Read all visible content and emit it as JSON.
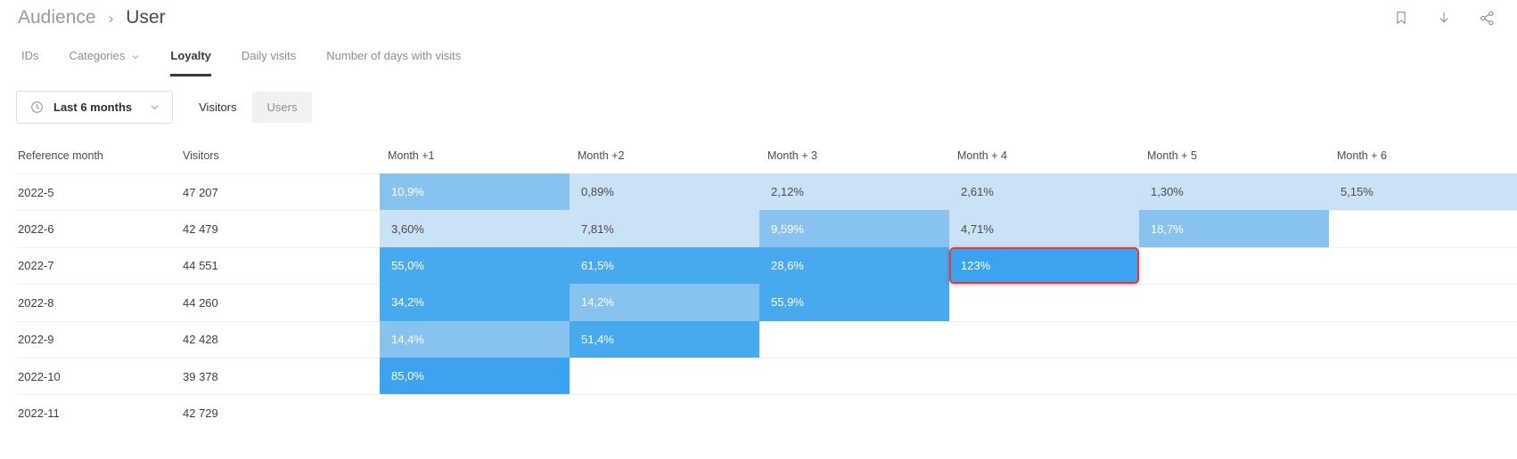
{
  "breadcrumb": {
    "section": "Audience",
    "separator": "›",
    "page": "User"
  },
  "header_icons": [
    {
      "name": "bookmark-icon"
    },
    {
      "name": "download-icon"
    },
    {
      "name": "share-icon"
    }
  ],
  "tabs": [
    {
      "label": "IDs",
      "active": false,
      "has_dropdown": false
    },
    {
      "label": "Categories",
      "active": false,
      "has_dropdown": true
    },
    {
      "label": "Loyalty",
      "active": true,
      "has_dropdown": false
    },
    {
      "label": "Daily visits",
      "active": false,
      "has_dropdown": false
    },
    {
      "label": "Number of days with visits",
      "active": false,
      "has_dropdown": false
    }
  ],
  "filters": {
    "period": {
      "label": "Last 6 months",
      "icon": "clock-icon"
    },
    "segments": [
      {
        "label": "Visitors",
        "active": true
      },
      {
        "label": "Users",
        "active": false
      }
    ]
  },
  "table": {
    "columns": [
      "Reference month",
      "Visitors",
      "Month +1",
      "Month +2",
      "Month + 3",
      "Month + 4",
      "Month + 5",
      "Month + 6"
    ],
    "rows": [
      {
        "month": "2022-5",
        "visitors": "47 207",
        "cells": [
          {
            "value": "10,9%",
            "shade": "medium"
          },
          {
            "value": "0,89%",
            "shade": "light"
          },
          {
            "value": "2,12%",
            "shade": "light"
          },
          {
            "value": "2,61%",
            "shade": "light"
          },
          {
            "value": "1,30%",
            "shade": "light"
          },
          {
            "value": "5,15%",
            "shade": "light"
          }
        ]
      },
      {
        "month": "2022-6",
        "visitors": "42 479",
        "cells": [
          {
            "value": "3,60%",
            "shade": "light"
          },
          {
            "value": "7,81%",
            "shade": "light"
          },
          {
            "value": "9,59%",
            "shade": "medium"
          },
          {
            "value": "4,71%",
            "shade": "light"
          },
          {
            "value": "18,7%",
            "shade": "medium"
          },
          null
        ]
      },
      {
        "month": "2022-7",
        "visitors": "44 551",
        "cells": [
          {
            "value": "55,0%",
            "shade": "dark"
          },
          {
            "value": "61,5%",
            "shade": "dark"
          },
          {
            "value": "28,6%",
            "shade": "dark"
          },
          {
            "value": "123%",
            "shade": "darkest",
            "highlighted": true
          },
          null,
          null
        ]
      },
      {
        "month": "2022-8",
        "visitors": "44 260",
        "cells": [
          {
            "value": "34,2%",
            "shade": "dark"
          },
          {
            "value": "14,2%",
            "shade": "medium"
          },
          {
            "value": "55,9%",
            "shade": "dark"
          },
          null,
          null,
          null
        ]
      },
      {
        "month": "2022-9",
        "visitors": "42 428",
        "cells": [
          {
            "value": "14,4%",
            "shade": "medium"
          },
          {
            "value": "51,4%",
            "shade": "dark"
          },
          null,
          null,
          null,
          null
        ]
      },
      {
        "month": "2022-10",
        "visitors": "39 378",
        "cells": [
          {
            "value": "85,0%",
            "shade": "darkest"
          },
          null,
          null,
          null,
          null,
          null
        ]
      },
      {
        "month": "2022-11",
        "visitors": "42 729",
        "cells": [
          null,
          null,
          null,
          null,
          null,
          null
        ]
      }
    ]
  },
  "colors": {
    "heat_light": "#cbe2f6",
    "heat_medium": "#88c3f0",
    "heat_dark": "#47a9ee",
    "heat_darkest": "#3ba3ef",
    "highlight_border": "#e03a3a",
    "active_tab_underline": "#3a3a3a",
    "muted_text": "#8d8d8d"
  }
}
